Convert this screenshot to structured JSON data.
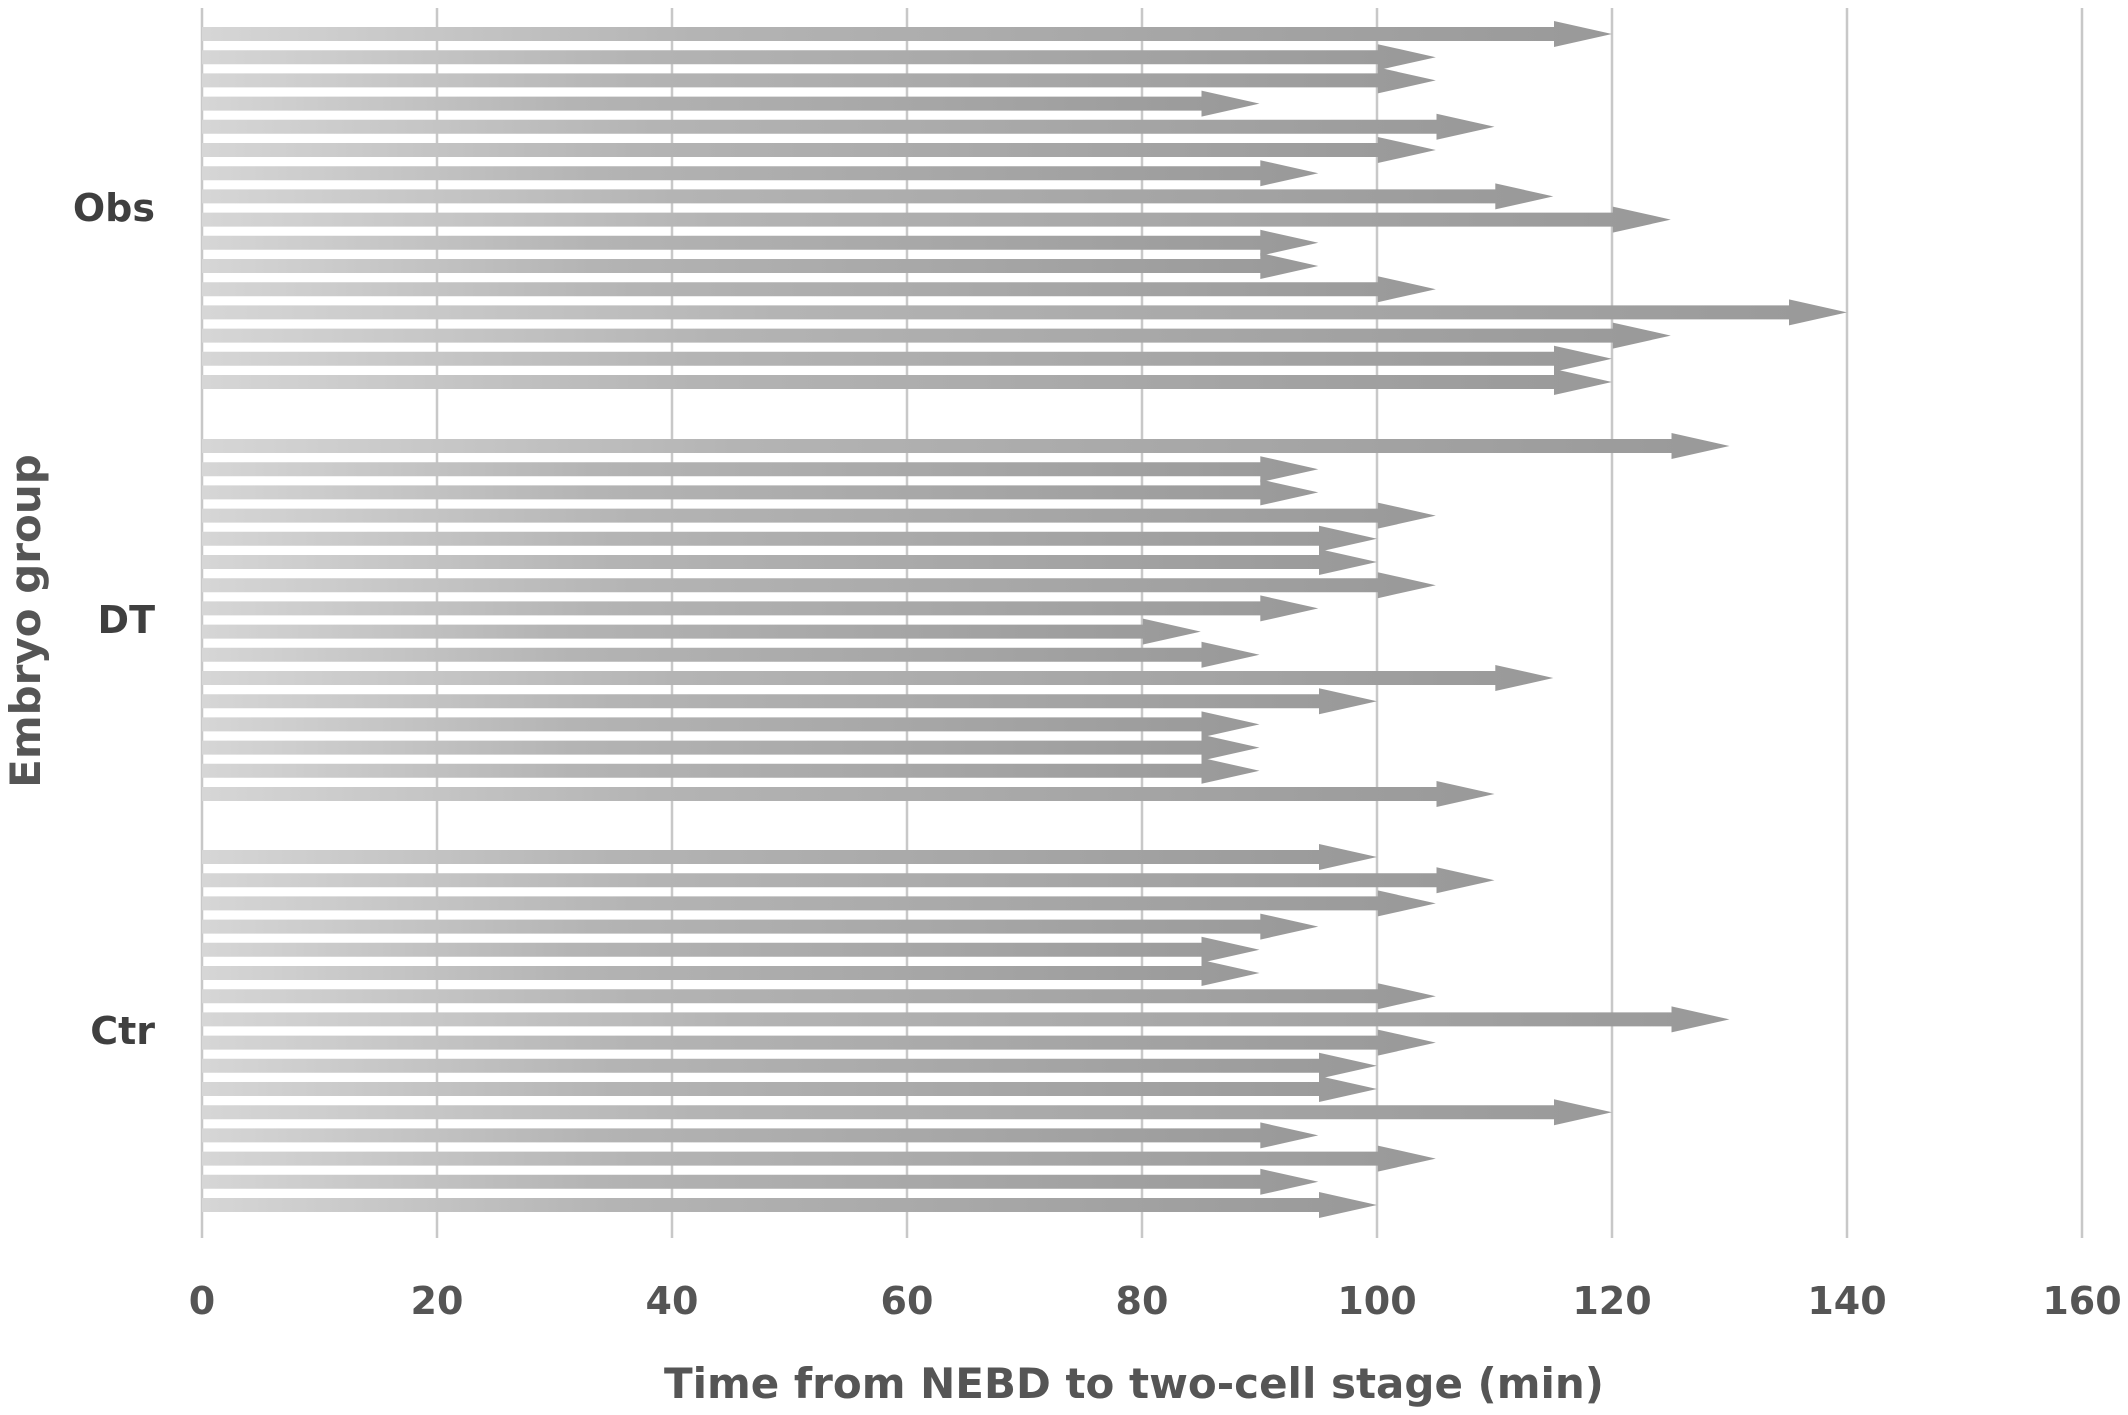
{
  "chart_data": {
    "type": "bar",
    "orientation": "horizontal",
    "bar_style": "arrow",
    "xlabel": "Time from NEBD to two-cell stage (min)",
    "ylabel": "Embryo group",
    "xlim": [
      0,
      160
    ],
    "x_ticks": [
      "0",
      "20",
      "40",
      "60",
      "80",
      "100",
      "120",
      "140",
      "160"
    ],
    "grid": "vertical",
    "colors": {
      "bar": "#999999",
      "grid": "#c8c8c8",
      "text": "#555555"
    },
    "groups": [
      {
        "name": "Obs",
        "values": [
          120,
          105,
          105,
          90,
          110,
          105,
          95,
          115,
          125,
          95,
          95,
          105,
          140,
          125,
          120,
          120
        ]
      },
      {
        "name": "DT",
        "values": [
          130,
          95,
          95,
          105,
          100,
          100,
          105,
          95,
          85,
          90,
          115,
          100,
          90,
          90,
          90,
          110
        ]
      },
      {
        "name": "Ctr",
        "values": [
          100,
          110,
          105,
          95,
          90,
          90,
          105,
          130,
          105,
          100,
          100,
          120,
          95,
          105,
          95,
          100
        ]
      }
    ]
  }
}
